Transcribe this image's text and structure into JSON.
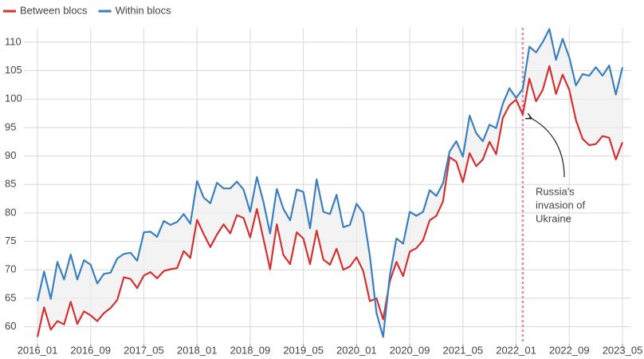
{
  "chart_data": {
    "type": "line",
    "categories": [
      "2016_01",
      null,
      null,
      null,
      null,
      null,
      null,
      null,
      "2016_09",
      null,
      null,
      null,
      null,
      null,
      null,
      null,
      "2017_05",
      null,
      null,
      null,
      null,
      null,
      null,
      null,
      "2018_01",
      null,
      null,
      null,
      null,
      null,
      null,
      null,
      "2018_09",
      null,
      null,
      null,
      null,
      null,
      null,
      null,
      "2019_05",
      null,
      null,
      null,
      null,
      null,
      null,
      null,
      "2020_01",
      null,
      null,
      null,
      null,
      null,
      null,
      null,
      "2020_09",
      null,
      null,
      null,
      null,
      null,
      null,
      null,
      "2021_05",
      null,
      null,
      null,
      null,
      null,
      null,
      null,
      "2022_01",
      null,
      null,
      null,
      null,
      null,
      null,
      null,
      "2022_09",
      null,
      null,
      null,
      null,
      null,
      null,
      null,
      "2023_05"
    ],
    "series": [
      {
        "name": "Between blocs",
        "color": "#d43232",
        "values": [
          58.2,
          63.4,
          59.5,
          61.0,
          60.4,
          64.4,
          60.5,
          62.7,
          62.0,
          61.0,
          62.4,
          63.3,
          64.7,
          68.7,
          68.4,
          66.8,
          69.0,
          69.6,
          68.5,
          69.8,
          70.1,
          70.3,
          73.3,
          72.1,
          78.8,
          76.3,
          74.0,
          76.2,
          78.0,
          76.4,
          79.6,
          79.1,
          75.7,
          80.7,
          75.4,
          70.1,
          78.0,
          72.6,
          71.0,
          76.6,
          75.5,
          71.0,
          76.9,
          71.8,
          70.9,
          73.7,
          70.0,
          70.6,
          72.2,
          69.8,
          64.5,
          65.0,
          61.3,
          68.0,
          71.4,
          68.9,
          73.2,
          73.8,
          75.2,
          78.7,
          79.5,
          82.0,
          89.8,
          89.0,
          85.4,
          90.5,
          88.2,
          89.4,
          92.5,
          90.3,
          96.7,
          98.9,
          99.9,
          97.3,
          103.6,
          99.6,
          101.6,
          105.8,
          100.9,
          104.3,
          101.6,
          96.3,
          93.0,
          91.9,
          92.1,
          93.5,
          93.2,
          89.4,
          92.4
        ]
      },
      {
        "name": "Within blocs",
        "color": "#3a80c0",
        "values": [
          64.5,
          69.7,
          64.9,
          71.4,
          68.3,
          72.7,
          68.3,
          71.7,
          70.9,
          67.6,
          69.3,
          69.5,
          72.0,
          72.8,
          73.0,
          71.6,
          76.6,
          76.7,
          75.8,
          78.6,
          77.9,
          78.4,
          79.8,
          78.1,
          85.6,
          82.7,
          81.7,
          85.3,
          84.3,
          84.3,
          85.5,
          84.1,
          80.2,
          86.3,
          81.9,
          76.4,
          84.2,
          80.7,
          78.7,
          84.1,
          83.7,
          77.3,
          85.9,
          80.2,
          79.8,
          83.2,
          77.5,
          77.9,
          81.6,
          80.0,
          72.5,
          62.4,
          58.2,
          69.0,
          75.5,
          74.6,
          80.2,
          79.5,
          80.2,
          84.0,
          83.0,
          85.2,
          90.8,
          92.6,
          89.9,
          97.1,
          94.0,
          92.6,
          95.5,
          94.9,
          99.2,
          101.9,
          100.2,
          101.8,
          109.2,
          108.2,
          110.0,
          112.3,
          106.9,
          110.6,
          107.3,
          102.4,
          104.4,
          104.1,
          105.6,
          104.1,
          105.9,
          100.8,
          105.6
        ]
      }
    ],
    "ylim": [
      57,
      112.5
    ],
    "yticks": [
      60,
      65,
      70,
      75,
      80,
      85,
      90,
      95,
      100,
      105,
      110
    ],
    "grid": true,
    "legend": "top-left",
    "annotation": [
      "Russia's",
      "invasion of",
      "Ukraine"
    ]
  }
}
